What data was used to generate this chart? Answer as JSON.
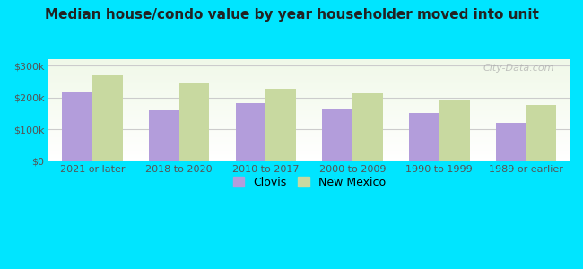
{
  "title": "Median house/condo value by year householder moved into unit",
  "categories": [
    "2021 or later",
    "2018 to 2020",
    "2010 to 2017",
    "2000 to 2009",
    "1990 to 1999",
    "1989 or earlier"
  ],
  "clovis_values": [
    215000,
    158000,
    183000,
    163000,
    150000,
    120000
  ],
  "newmexico_values": [
    268000,
    243000,
    228000,
    213000,
    193000,
    175000
  ],
  "clovis_color": "#b39ddb",
  "newmexico_color": "#c8d9a0",
  "background_outer": "#00e5ff",
  "background_inner_top": "#f0f8e8",
  "background_inner_bottom": "#ffffff",
  "ylabel_ticks": [
    0,
    100000,
    200000,
    300000
  ],
  "ylabel_labels": [
    "$0",
    "$100k",
    "$200k",
    "$300k"
  ],
  "ylim": [
    0,
    320000
  ],
  "bar_width": 0.35,
  "legend_labels": [
    "Clovis",
    "New Mexico"
  ],
  "watermark": "City-Data.com"
}
